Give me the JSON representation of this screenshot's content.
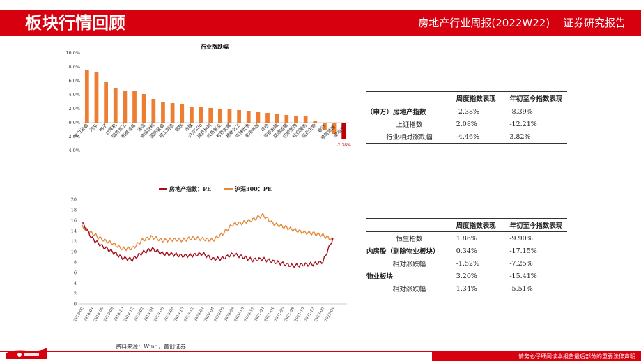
{
  "header": {
    "title": "板块行情回顾",
    "report_name": "房地产行业周报(2022W22)",
    "report_type": "证券研究报告"
  },
  "colors": {
    "brand_red": "#d7000f",
    "bar_orange": "#ed7d31",
    "bar_red": "#c00000",
    "line_red": "#a40e1a",
    "line_orange": "#e3893a"
  },
  "chart_data": [
    {
      "type": "bar",
      "title": "行业涨跌幅",
      "categories": [
        "电力设备",
        "汽车",
        "电子",
        "计算机",
        "国防军工",
        "机械设备",
        "通信",
        "食品饮料",
        "国防装备",
        "轻工制造",
        "钢铁",
        "传媒",
        "沪深300",
        "建筑材料",
        "公用事业",
        "有色金属",
        "基础化工",
        "农林牧渔",
        "家用电器",
        "综合",
        "非银金融",
        "交通运输",
        "纺织服饰",
        "社会服务",
        "医药生物",
        "银行",
        "建筑装饰",
        "房地产"
      ],
      "values": [
        7.6,
        7.3,
        5.9,
        5.0,
        4.6,
        4.5,
        4.1,
        3.4,
        3.0,
        2.8,
        2.7,
        2.3,
        2.2,
        2.1,
        2.0,
        1.9,
        1.8,
        1.7,
        1.6,
        1.4,
        1.2,
        1.1,
        1.0,
        0.9,
        0.2,
        -1.0,
        -1.6,
        -2.38
      ],
      "highlight_label": "-2.38%",
      "yticks": [
        "10.0%",
        "8.0%",
        "6.0%",
        "4.0%",
        "2.0%",
        "0.0%",
        "-2.0%",
        "-4.0%"
      ],
      "ylim": [
        -4,
        10
      ]
    },
    {
      "type": "line",
      "legend": [
        "房地产指数：PE",
        "沪深300：PE"
      ],
      "x": [
        "2018-02",
        "2018-04",
        "2018-06",
        "2018-08",
        "2018-10",
        "2018-12",
        "2019-02",
        "2019-04",
        "2019-06",
        "2019-08",
        "2019-10",
        "2019-12",
        "2020-02",
        "2020-04",
        "2020-06",
        "2020-08",
        "2020-10",
        "2020-12",
        "2021-02",
        "2021-04",
        "2021-06",
        "2021-08",
        "2021-10",
        "2021-12",
        "2022-02",
        "2022-04"
      ],
      "series": [
        {
          "name": "房地产指数：PE",
          "values": [
            15.5,
            12.5,
            11.0,
            10.0,
            8.8,
            8.5,
            9.8,
            10.5,
            9.6,
            9.5,
            9.2,
            9.3,
            9.6,
            8.6,
            8.7,
            9.5,
            9.0,
            8.4,
            8.6,
            8.1,
            7.7,
            7.3,
            7.5,
            7.6,
            8.1,
            12.6
          ]
        },
        {
          "name": "沪深300：PE",
          "values": [
            14.8,
            13.5,
            12.3,
            11.6,
            10.5,
            10.6,
            12.2,
            12.8,
            12.1,
            12.3,
            12.2,
            12.6,
            12.4,
            12.2,
            13.4,
            15.2,
            15.5,
            16.1,
            17.0,
            15.4,
            14.8,
            14.2,
            13.7,
            13.5,
            13.1,
            12.2
          ]
        }
      ],
      "yticks": [
        "20",
        "18",
        "16",
        "14",
        "12",
        "10",
        "8",
        "6",
        "4",
        "2",
        "0"
      ],
      "ylim": [
        0,
        20
      ]
    }
  ],
  "table1": {
    "headers": [
      "",
      "周度指数表现",
      "年初至今指数表现"
    ],
    "rows": [
      {
        "label": "（申万）房地产指数",
        "week": "-2.38%",
        "ytd": "-8.39%",
        "bold": true
      },
      {
        "label": "上证指数",
        "week": "2.08%",
        "ytd": "-12.21%",
        "bold": false
      },
      {
        "label": "行业相对涨跌幅",
        "week": "-4.46%",
        "ytd": "3.82%",
        "bold": false
      }
    ]
  },
  "table2": {
    "headers": [
      "",
      "周度指数表现",
      "年初至今指数表现"
    ],
    "rows": [
      {
        "label": "恒生指数",
        "week": "1.86%",
        "ytd": "-9.90%",
        "bold": false
      },
      {
        "label": "内房股（剔除物业板块）",
        "week": "0.34%",
        "ytd": "-17.15%",
        "bold": true
      },
      {
        "label": "相对涨跌幅",
        "week": "-1.52%",
        "ytd": "-7.25%",
        "bold": false
      },
      {
        "label": "物业板块",
        "week": "3.20%",
        "ytd": "-15.41%",
        "bold": true
      },
      {
        "label": "相对涨跌幅",
        "week": "1.34%",
        "ytd": "-5.51%",
        "bold": false
      }
    ]
  },
  "source": "资料来源：Wind，首创证券",
  "footer_note": "请务必仔细阅读本报告最后部分的重要法律声明"
}
